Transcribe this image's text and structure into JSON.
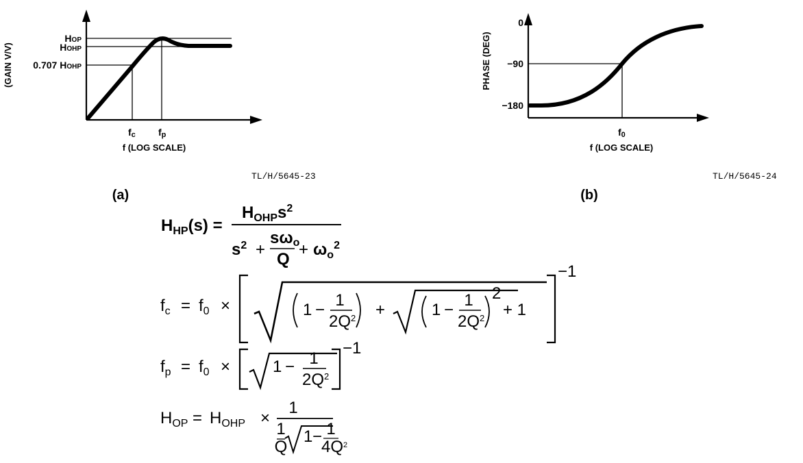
{
  "figure_a": {
    "y_axis_label": "(GAIN V/V)",
    "y_ticks": {
      "hop": {
        "main": "H",
        "sub": "OP"
      },
      "hohp": {
        "main": "H",
        "sub": "OHP"
      },
      "h707": {
        "main": "0.707 H",
        "sub": "OHP"
      }
    },
    "x_ticks": {
      "fc": {
        "main": "f",
        "sub": "c"
      },
      "fp": {
        "main": "f",
        "sub": "p"
      }
    },
    "x_axis_label": "f (LOG SCALE)",
    "ref": "TL/H/5645-23",
    "caption": "(a)"
  },
  "figure_b": {
    "y_axis_label": "PHASE (DEG)",
    "y_ticks": [
      "0",
      "−90",
      "−180"
    ],
    "x_tick": {
      "main": "f",
      "sub": "0"
    },
    "x_axis_label": "f (LOG SCALE)",
    "ref": "TL/H/5645-24",
    "caption": "(b)"
  },
  "equations": {
    "hhp": {
      "lhs_main": "H",
      "lhs_sub": "HP",
      "lhs_tail": "(s) =",
      "num_main": "H",
      "num_sub": "OHP",
      "num_var": "s",
      "num_sup": "2",
      "den_s": "s",
      "den_sup": "2",
      "den_plus1": "+",
      "den_frac_num_s": "sω",
      "den_frac_num_sub": "o",
      "den_frac_den": "Q",
      "den_plus2": "+",
      "den_omega": "ω",
      "den_omega_sub": "o",
      "den_omega_sup": "2"
    },
    "fc": {
      "lhs_main": "f",
      "lhs_sub": "c",
      "eq": "=",
      "f0_main": "f",
      "f0_sub": "0",
      "times": "×",
      "one": "1",
      "minus": "−",
      "frac_num": "1",
      "frac_den": "2Q",
      "frac_den_sup": "2",
      "plus": "+",
      "sq": "2",
      "plus_one": "+ 1",
      "exp": "−1"
    },
    "fp": {
      "lhs_main": "f",
      "lhs_sub": "p",
      "eq": "=",
      "f0_main": "f",
      "f0_sub": "0",
      "times": "×",
      "one": "1",
      "minus": "−",
      "frac_num": "1",
      "frac_den": "2Q",
      "frac_den_sup": "2",
      "exp": "−1"
    },
    "hop": {
      "lhs_main": "H",
      "lhs_sub": "OP",
      "eq": "=",
      "rhs_main": "H",
      "rhs_sub": "OHP",
      "times": "×",
      "num": "1",
      "q_num": "1",
      "q_den": "Q",
      "one": "1",
      "minus": "−",
      "frac_num": "1",
      "frac_den": "4Q",
      "frac_den_sup": "2"
    }
  }
}
